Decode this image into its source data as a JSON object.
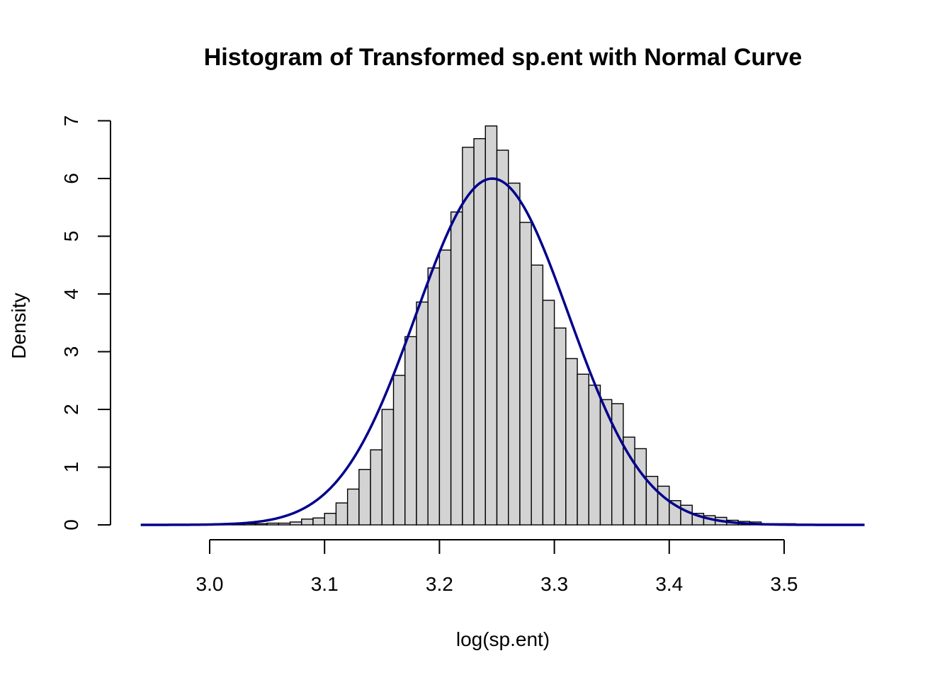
{
  "chart_data": {
    "type": "bar",
    "subtype": "histogram",
    "title": "Histogram of Transformed sp.ent with Normal Curve",
    "xlabel": "log(sp.ent)",
    "ylabel": "Density",
    "xlim": [
      2.94,
      3.57
    ],
    "ylim": [
      0,
      7
    ],
    "x_ticks": [
      "3.0",
      "3.1",
      "3.2",
      "3.3",
      "3.4",
      "3.5"
    ],
    "x_tick_values": [
      3.0,
      3.1,
      3.2,
      3.3,
      3.4,
      3.5
    ],
    "y_ticks": [
      "0",
      "1",
      "2",
      "3",
      "4",
      "5",
      "6",
      "7"
    ],
    "y_tick_values": [
      0,
      1,
      2,
      3,
      4,
      5,
      6,
      7
    ],
    "bin_width": 0.01,
    "bins_start": [
      3.01,
      3.02,
      3.03,
      3.04,
      3.05,
      3.06,
      3.07,
      3.08,
      3.09,
      3.1,
      3.11,
      3.12,
      3.13,
      3.14,
      3.15,
      3.16,
      3.17,
      3.18,
      3.19,
      3.2,
      3.21,
      3.22,
      3.23,
      3.24,
      3.25,
      3.26,
      3.27,
      3.28,
      3.29,
      3.3,
      3.31,
      3.32,
      3.33,
      3.34,
      3.35,
      3.36,
      3.37,
      3.38,
      3.39,
      3.4,
      3.41,
      3.42,
      3.43,
      3.44,
      3.45,
      3.46,
      3.47,
      3.48,
      3.49,
      3.5
    ],
    "values": [
      0.01,
      0.01,
      0.02,
      0.02,
      0.03,
      0.03,
      0.05,
      0.1,
      0.12,
      0.2,
      0.38,
      0.62,
      0.96,
      1.3,
      2.0,
      2.59,
      3.26,
      3.86,
      4.45,
      4.76,
      5.42,
      6.54,
      6.69,
      6.91,
      6.49,
      5.92,
      5.24,
      4.5,
      3.89,
      3.41,
      2.88,
      2.61,
      2.42,
      2.17,
      2.1,
      1.52,
      1.32,
      0.84,
      0.67,
      0.42,
      0.34,
      0.2,
      0.16,
      0.13,
      0.08,
      0.06,
      0.05,
      0.02,
      0.02,
      0.02
    ],
    "series": [
      {
        "type": "line",
        "color": "#00008b",
        "distribution": "normal",
        "mean": 3.246,
        "sd": 0.0665,
        "x_range": [
          2.94,
          3.57
        ]
      }
    ],
    "grid": false,
    "colors": {
      "bar_fill": "#d3d3d3",
      "bar_stroke": "#000000",
      "curve": "#00008b"
    }
  }
}
